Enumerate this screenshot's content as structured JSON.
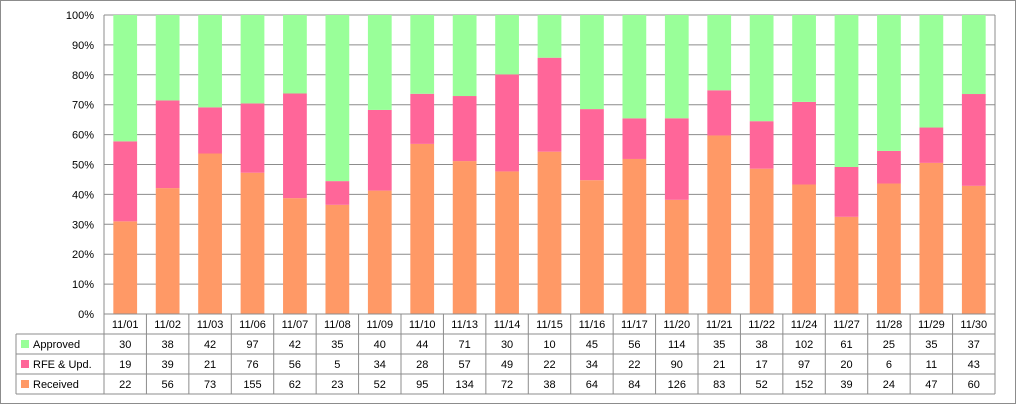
{
  "chart_data": {
    "type": "bar",
    "stacking": "percent",
    "categories": [
      "11/01",
      "11/02",
      "11/03",
      "11/06",
      "11/07",
      "11/08",
      "11/09",
      "11/10",
      "11/13",
      "11/14",
      "11/15",
      "11/16",
      "11/17",
      "11/20",
      "11/21",
      "11/22",
      "11/24",
      "11/27",
      "11/28",
      "11/29",
      "11/30"
    ],
    "series": [
      {
        "name": "Received",
        "color": "#ff9966",
        "values": [
          22,
          56,
          73,
          155,
          62,
          23,
          52,
          95,
          134,
          72,
          38,
          64,
          84,
          126,
          83,
          52,
          152,
          39,
          24,
          47,
          60
        ]
      },
      {
        "name": "RFE & Upd.",
        "color": "#ff6699",
        "values": [
          19,
          39,
          21,
          76,
          56,
          5,
          34,
          28,
          57,
          49,
          22,
          34,
          22,
          90,
          21,
          17,
          97,
          20,
          6,
          11,
          43
        ]
      },
      {
        "name": "Approved",
        "color": "#99ff99",
        "values": [
          30,
          38,
          42,
          97,
          42,
          35,
          40,
          44,
          71,
          30,
          10,
          45,
          56,
          114,
          35,
          38,
          102,
          61,
          25,
          35,
          37
        ]
      }
    ],
    "table_row_order": [
      "Approved",
      "RFE & Upd.",
      "Received"
    ],
    "ylim": [
      0,
      100
    ],
    "yticks": [
      "0%",
      "10%",
      "20%",
      "30%",
      "40%",
      "50%",
      "60%",
      "70%",
      "80%",
      "90%",
      "100%"
    ],
    "grid": true,
    "legend": "data-table",
    "title": "",
    "xlabel": "",
    "ylabel": ""
  }
}
